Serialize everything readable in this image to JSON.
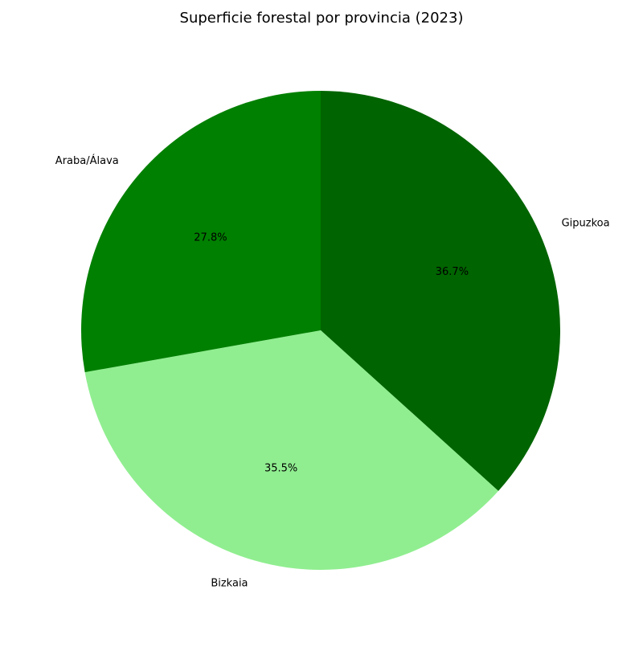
{
  "chart_data": {
    "type": "pie",
    "title": "Superficie forestal por provincia (2023)",
    "slices": [
      {
        "label": "Gipuzkoa",
        "value": 36.7,
        "pct_label": "36.7%",
        "color": "#006400"
      },
      {
        "label": "Bizkaia",
        "value": 35.5,
        "pct_label": "35.5%",
        "color": "#90EE90"
      },
      {
        "label": "Araba/Álava",
        "value": 27.8,
        "pct_label": "27.8%",
        "color": "#008000"
      }
    ],
    "start_angle_deg": 90,
    "direction": "clockwise",
    "legend": "none"
  }
}
